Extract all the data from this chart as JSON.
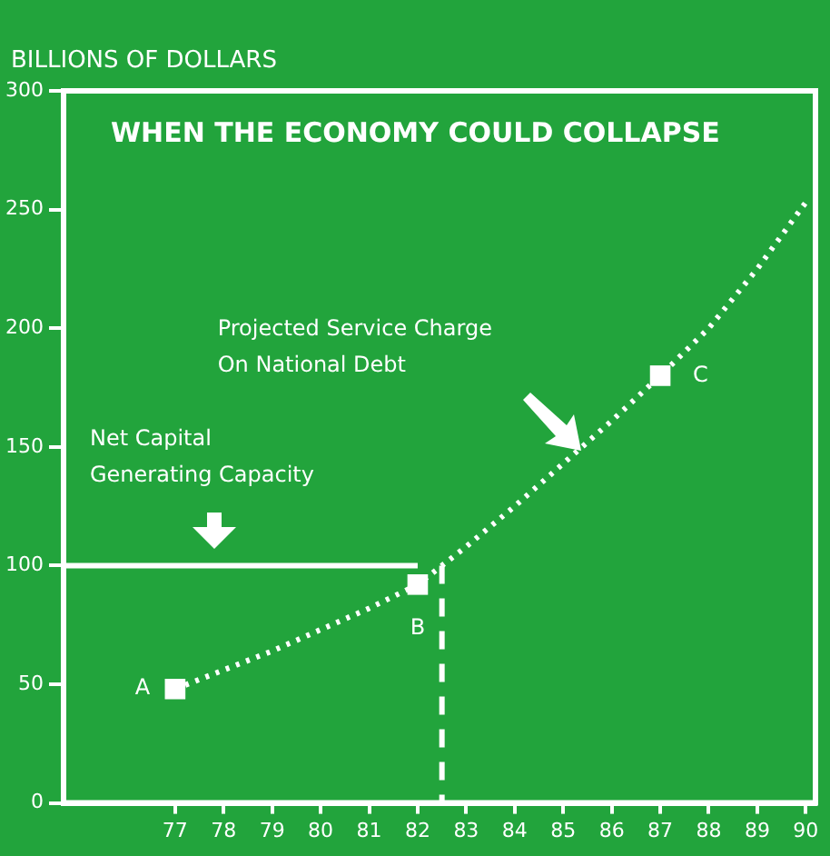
{
  "chart_data": {
    "type": "line",
    "title": "WHEN THE ECONOMY COULD COLLAPSE",
    "ylabel": "BILLIONS OF DOLLARS",
    "xlim": [
      74.7,
      90.2
    ],
    "xticks": [
      77,
      78,
      79,
      80,
      81,
      82,
      83,
      84,
      85,
      86,
      87,
      88,
      89,
      90
    ],
    "ylim": [
      0,
      300
    ],
    "yticks": [
      0,
      50,
      100,
      150,
      200,
      250,
      300
    ],
    "grid": false,
    "legend": false,
    "series": [
      {
        "color": "#ffffff",
        "line_style": "dotted",
        "marker": "none",
        "x": [
          77,
          78,
          79,
          80,
          81,
          82,
          82.5,
          83,
          84,
          85,
          86,
          87,
          88,
          89,
          90
        ],
        "values": [
          48,
          56,
          64,
          73,
          82,
          92,
          100,
          108,
          125,
          143,
          161,
          180,
          200,
          225,
          253
        ]
      },
      {
        "type": "scatter",
        "color": "#ffffff",
        "marker": "square",
        "x": [
          77,
          82,
          87
        ],
        "values": [
          48,
          92,
          180
        ]
      },
      {
        "color": "#ffffff",
        "line_style": "solid",
        "marker": "none",
        "x": [
          74.7,
          82
        ],
        "values": [
          100,
          100
        ]
      },
      {
        "color": "#ffffff",
        "line_style": "dashed",
        "marker": "none",
        "x": [
          82.5,
          82.5
        ],
        "values": [
          100,
          0
        ]
      }
    ],
    "annotations": [
      "Projected Service Charge\nOn National Debt",
      "Net Capital\nGenerating Capacity",
      {
        "text": "A",
        "x": 77,
        "y": 48
      },
      {
        "text": "B",
        "x": 82,
        "y": 92
      },
      {
        "text": "C",
        "x": 87,
        "y": 180
      }
    ]
  }
}
